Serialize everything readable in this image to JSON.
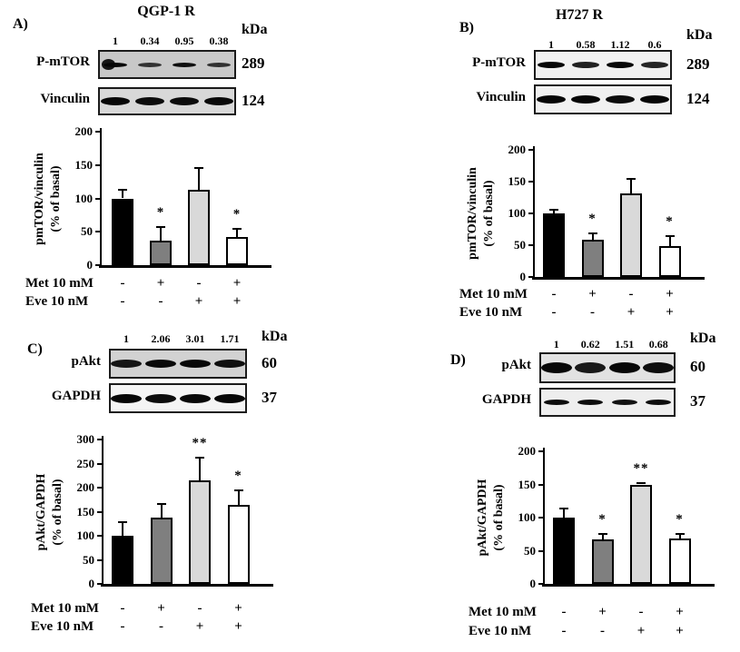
{
  "figure": {
    "panels": [
      {
        "label": "A)",
        "title": "QGP-1 R",
        "kda_label": "kDa",
        "lane_values": [
          "1",
          "0.34",
          "0.95",
          "0.38"
        ],
        "blots": [
          {
            "protein": "P-mTOR",
            "kda": "289",
            "bg_color": "#c8c8c8",
            "band_intensities": [
              1,
              0.5,
              0.92,
              0.52
            ]
          },
          {
            "protein": "Vinculin",
            "kda": "124",
            "bg_color": "#d8d8d8",
            "band_intensities": [
              1,
              0.95,
              0.95,
              0.98
            ]
          }
        ],
        "treatments": [
          {
            "label": "Met 10 mM",
            "signs": [
              "-",
              "+",
              "-",
              "+"
            ]
          },
          {
            "label": "Eve 10 nM",
            "signs": [
              "-",
              "-",
              "+",
              "+"
            ]
          }
        ]
      },
      {
        "label": "B)",
        "title": "H727 R",
        "kda_label": "kDa",
        "lane_values": [
          "1",
          "0.58",
          "1.12",
          "0.6"
        ],
        "blots": [
          {
            "protein": "P-mTOR",
            "kda": "289",
            "bg_color": "#f1f1f1",
            "band_intensities": [
              1,
              0.75,
              0.98,
              0.7
            ]
          },
          {
            "protein": "Vinculin",
            "kda": "124",
            "bg_color": "#f1f1f1",
            "band_intensities": [
              1,
              1,
              0.95,
              1
            ]
          }
        ],
        "treatments": [
          {
            "label": "Met 10 mM",
            "signs": [
              "-",
              "+",
              "-",
              "+"
            ]
          },
          {
            "label": "Eve 10 nM",
            "signs": [
              "-",
              "-",
              "+",
              "+"
            ]
          }
        ]
      },
      {
        "label": "C)",
        "title": "",
        "kda_label": "kDa",
        "lane_values": [
          "1",
          "2.06",
          "3.01",
          "1.71"
        ],
        "blots": [
          {
            "protein": "pAkt",
            "kda": "60",
            "bg_color": "#d2d2d2",
            "band_intensities": [
              0.85,
              0.98,
              1,
              0.92
            ]
          },
          {
            "protein": "GAPDH",
            "kda": "37",
            "bg_color": "#f4f4f4",
            "band_intensities": [
              1,
              0.95,
              0.98,
              1
            ]
          }
        ],
        "treatments": [
          {
            "label": "Met 10 mM",
            "signs": [
              "-",
              "+",
              "-",
              "+"
            ]
          },
          {
            "label": "Eve 10 nM",
            "signs": [
              "-",
              "-",
              "+",
              "+"
            ]
          }
        ]
      },
      {
        "label": "D)",
        "title": "",
        "kda_label": "kDa",
        "lane_values": [
          "1",
          "0.62",
          "1.51",
          "0.68"
        ],
        "blots": [
          {
            "protein": "pAkt",
            "kda": "60",
            "bg_color": "#e2e2e2",
            "band_intensities": [
              1,
              0.82,
              1,
              0.95
            ]
          },
          {
            "protein": "GAPDH",
            "kda": "37",
            "bg_color": "#eeeeee",
            "band_intensities": [
              0.95,
              0.95,
              0.9,
              0.95
            ]
          }
        ],
        "treatments": [
          {
            "label": "Met 10 mM",
            "signs": [
              "-",
              "+",
              "-",
              "+"
            ]
          },
          {
            "label": "Eve 10 nM",
            "signs": [
              "-",
              "-",
              "+",
              "+"
            ]
          }
        ]
      }
    ]
  },
  "chart_data": [
    {
      "type": "bar",
      "panel": "A",
      "title": "QGP-1 R",
      "ylabel_lines": [
        "pmTOR/vinculin",
        "(% of basal)"
      ],
      "xlabel": "",
      "categories": [
        "Met - / Eve -",
        "Met + / Eve -",
        "Met - / Eve +",
        "Met + / Eve +"
      ],
      "values": [
        100,
        37,
        113,
        42
      ],
      "errors": [
        13,
        20,
        33,
        13
      ],
      "significance": [
        "",
        "*",
        "",
        "*"
      ],
      "ylim": [
        0,
        200
      ],
      "yticks": [
        0,
        50,
        100,
        150,
        200
      ],
      "bar_colors": [
        "#000000",
        "#7f7f7f",
        "#d9d9d9",
        "#ffffff"
      ],
      "bar_border_color": "#000000",
      "grid": false,
      "legend": "none"
    },
    {
      "type": "bar",
      "panel": "B",
      "title": "H727 R",
      "ylabel_lines": [
        "pmTOR/vinculin",
        "(% of basal)"
      ],
      "xlabel": "",
      "categories": [
        "Met - / Eve -",
        "Met + / Eve -",
        "Met - / Eve +",
        "Met + / Eve +"
      ],
      "values": [
        100,
        59,
        131,
        49
      ],
      "errors": [
        6,
        9,
        24,
        16
      ],
      "significance": [
        "",
        "*",
        "",
        "*"
      ],
      "ylim": [
        0,
        200
      ],
      "yticks": [
        0,
        50,
        100,
        150,
        200
      ],
      "bar_colors": [
        "#000000",
        "#7f7f7f",
        "#d9d9d9",
        "#ffffff"
      ],
      "bar_border_color": "#000000",
      "grid": false,
      "legend": "none"
    },
    {
      "type": "bar",
      "panel": "C",
      "title": "",
      "ylabel_lines": [
        "pAkt/GAPDH",
        "(% of basal)"
      ],
      "xlabel": "",
      "categories": [
        "Met - / Eve -",
        "Met + / Eve -",
        "Met - / Eve +",
        "Met + / Eve +"
      ],
      "values": [
        100,
        138,
        215,
        164
      ],
      "errors": [
        28,
        28,
        47,
        30
      ],
      "significance": [
        "",
        "",
        "**",
        "*"
      ],
      "ylim": [
        0,
        300
      ],
      "yticks": [
        0,
        50,
        100,
        150,
        200,
        250,
        300
      ],
      "bar_colors": [
        "#000000",
        "#7f7f7f",
        "#d9d9d9",
        "#ffffff"
      ],
      "bar_border_color": "#000000",
      "grid": false,
      "legend": "none"
    },
    {
      "type": "bar",
      "panel": "D",
      "title": "",
      "ylabel_lines": [
        "pAkt/GAPDH",
        "(% of basal)"
      ],
      "xlabel": "",
      "categories": [
        "Met - / Eve -",
        "Met + / Eve -",
        "Met - / Eve +",
        "Met + / Eve +"
      ],
      "values": [
        100,
        67,
        150,
        69
      ],
      "errors": [
        14,
        8,
        2,
        7
      ],
      "significance": [
        "",
        "*",
        "**",
        "*"
      ],
      "ylim": [
        0,
        200
      ],
      "yticks": [
        0,
        50,
        100,
        150,
        200
      ],
      "bar_colors": [
        "#000000",
        "#7f7f7f",
        "#d9d9d9",
        "#ffffff"
      ],
      "bar_border_color": "#000000",
      "grid": false,
      "legend": "none"
    }
  ]
}
